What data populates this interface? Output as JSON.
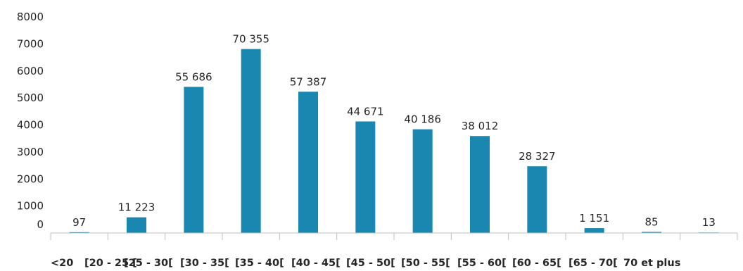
{
  "chart_data": {
    "type": "bar",
    "title": "",
    "xlabel": "",
    "ylabel": "",
    "categories": [
      "<20",
      "[20 - 25 [",
      "[25 - 30[",
      "[30 - 35[",
      "[35 - 40[",
      "[40 - 45[",
      "[45 - 50[",
      "[50 - 55[",
      "[55 - 60[",
      "[60 - 65[",
      "[65 - 70[",
      "70 et plus"
    ],
    "values": [
      97,
      11223,
      55686,
      70355,
      57387,
      44671,
      40186,
      38012,
      28327,
      1151,
      85,
      13
    ],
    "bar_heights": [
      30,
      580,
      5410,
      6810,
      5230,
      4130,
      3840,
      3590,
      2470,
      180,
      40,
      20
    ],
    "data_labels": [
      "97",
      "11 223",
      "55 686",
      "70 355",
      "57 387",
      "44 671",
      "40 186",
      "38 012",
      "28 327",
      "1 151",
      "85",
      "13"
    ],
    "y_ticks": [
      "0",
      "1000",
      "2000",
      "3000",
      "4000",
      "5000",
      "6000",
      "7000",
      "8000"
    ],
    "ylim": [
      0,
      8000
    ],
    "bar_color": "#1a87b0",
    "grid": false,
    "legend": "none"
  }
}
